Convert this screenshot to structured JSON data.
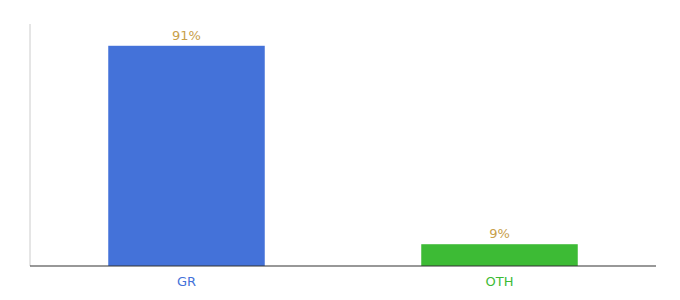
{
  "chart_data": {
    "type": "bar",
    "categories": [
      "GR",
      "OTH"
    ],
    "values": [
      91,
      9
    ],
    "value_labels": [
      "91%",
      "9%"
    ],
    "colors": [
      "#4472d9",
      "#3dbb35"
    ],
    "ylim": [
      0,
      100
    ],
    "data_labels": true,
    "tick_labels": "x",
    "grid": false
  }
}
